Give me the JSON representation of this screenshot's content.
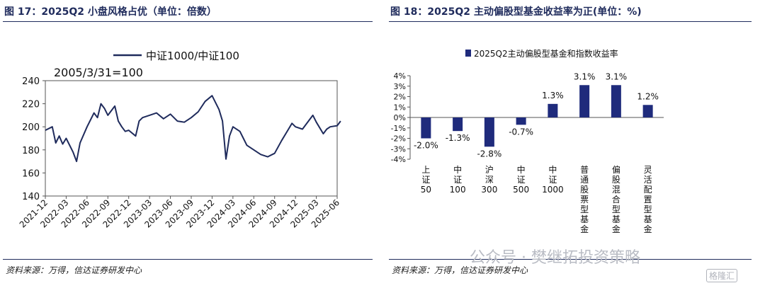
{
  "left": {
    "title": "图 17：2025Q2 小盘风格占优（单位：倍数）",
    "source": "资料来源：万得，信达证券研发中心",
    "annotation": "2005/3/31=100"
  },
  "right": {
    "title": "图 18：2025Q2 主动偏股型基金收益率为正(单位：%)",
    "source": "资料来源：万得，信达证券研发中心",
    "watermark": "公众号 · 樊继拓投资策略",
    "watermark2": "格隆汇"
  },
  "chart_data": [
    {
      "type": "line",
      "title": "",
      "legend": [
        "中证1000/中证100"
      ],
      "legend_position": "top",
      "ylim": [
        140,
        240
      ],
      "yticks": [
        140,
        160,
        180,
        200,
        220,
        240
      ],
      "xticks": [
        "2021-12",
        "2022-03",
        "2022-06",
        "2022-09",
        "2022-12",
        "2023-03",
        "2023-06",
        "2023-09",
        "2023-12",
        "2024-03",
        "2024-06",
        "2024-09",
        "2024-12",
        "2025-03",
        "2025-06"
      ],
      "grid": false,
      "series": [
        {
          "name": "中证1000/中证100",
          "color": "#1f2b5c",
          "points": [
            [
              "2021-12",
              197
            ],
            [
              "2022-01",
              200
            ],
            [
              "2022-01",
              186
            ],
            [
              "2022-02",
              192
            ],
            [
              "2022-02",
              185
            ],
            [
              "2022-03",
              190
            ],
            [
              "2022-04",
              178
            ],
            [
              "2022-04",
              170
            ],
            [
              "2022-05",
              186
            ],
            [
              "2022-06",
              200
            ],
            [
              "2022-07",
              212
            ],
            [
              "2022-07",
              208
            ],
            [
              "2022-08",
              220
            ],
            [
              "2022-08",
              216
            ],
            [
              "2022-09",
              210
            ],
            [
              "2022-10",
              218
            ],
            [
              "2022-10",
              205
            ],
            [
              "2022-11",
              200
            ],
            [
              "2022-11",
              196
            ],
            [
              "2022-12",
              197
            ],
            [
              "2023-01",
              192
            ],
            [
              "2023-01",
              205
            ],
            [
              "2023-02",
              208
            ],
            [
              "2023-03",
              210
            ],
            [
              "2023-04",
              212
            ],
            [
              "2023-05",
              207
            ],
            [
              "2023-06",
              211
            ],
            [
              "2023-07",
              205
            ],
            [
              "2023-08",
              204
            ],
            [
              "2023-09",
              208
            ],
            [
              "2023-10",
              213
            ],
            [
              "2023-11",
              222
            ],
            [
              "2023-12",
              227
            ],
            [
              "2024-01",
              215
            ],
            [
              "2024-01",
              205
            ],
            [
              "2024-02",
              172
            ],
            [
              "2024-02",
              192
            ],
            [
              "2024-03",
              200
            ],
            [
              "2024-04",
              196
            ],
            [
              "2024-04",
              190
            ],
            [
              "2024-05",
              184
            ],
            [
              "2024-06",
              180
            ],
            [
              "2024-07",
              176
            ],
            [
              "2024-08",
              174
            ],
            [
              "2024-09",
              177
            ],
            [
              "2024-10",
              188
            ],
            [
              "2024-11",
              198
            ],
            [
              "2024-11",
              203
            ],
            [
              "2024-12",
              200
            ],
            [
              "2025-01",
              198
            ],
            [
              "2025-02",
              206
            ],
            [
              "2025-02",
              210
            ],
            [
              "2025-03",
              204
            ],
            [
              "2025-04",
              194
            ],
            [
              "2025-04",
              198
            ],
            [
              "2025-05",
              200
            ],
            [
              "2025-06",
              201
            ],
            [
              "2025-06",
              205
            ]
          ]
        }
      ]
    },
    {
      "type": "bar",
      "title": "",
      "legend": [
        "2025Q2主动偏股型基金和指数收益率"
      ],
      "legend_position": "top",
      "ylim": [
        -4,
        4
      ],
      "yticks": [
        "-4%",
        "-3%",
        "-2%",
        "-1%",
        "0%",
        "1%",
        "2%",
        "3%",
        "4%"
      ],
      "categories": [
        "上证50",
        "中证100",
        "沪深300",
        "中证500",
        "中证1000",
        "普通股票型基金",
        "偏股混合型基金",
        "灵活配置型基金"
      ],
      "series": [
        {
          "name": "2025Q2主动偏股型基金和指数收益率",
          "color": "#1f2b7c",
          "values": [
            -2.0,
            -1.3,
            -2.8,
            -0.7,
            1.3,
            3.1,
            3.1,
            1.2
          ],
          "labels": [
            "-2.0%",
            "-1.3%",
            "-2.8%",
            "-0.7%",
            "1.3%",
            "3.1%",
            "3.1%",
            "1.2%"
          ]
        }
      ]
    }
  ]
}
